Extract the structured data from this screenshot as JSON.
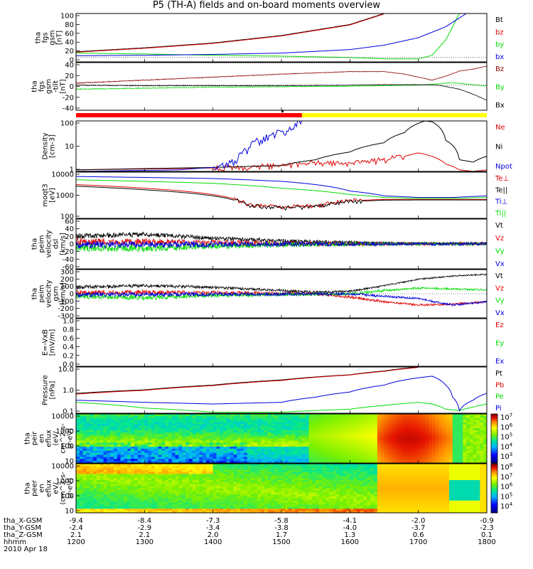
{
  "title": "P5 (TH-A) fields and on-board moments overview",
  "colors": {
    "black": "#000000",
    "red": "#dd0000",
    "green": "#00dd00",
    "blue": "#0000dd",
    "darkred": "#8b0000"
  },
  "chart_data": [
    {
      "type": "line",
      "ylabel": [
        "tha",
        "fgs",
        "gsm",
        "[nT]"
      ],
      "ylim": [
        -10,
        100
      ],
      "ytick_labels": [
        "100",
        "80",
        "60",
        "40",
        "20",
        "0"
      ],
      "series": [
        {
          "name": "Bt",
          "color": "#000000",
          "x": [
            1200,
            1300,
            1400,
            1500,
            1600,
            1650
          ],
          "y": [
            13,
            22,
            33,
            50,
            75,
            100
          ]
        },
        {
          "name": "bz",
          "color": "#dd0000",
          "x": [
            1200,
            1300,
            1400,
            1500,
            1600,
            1650
          ],
          "y": [
            12,
            21,
            32,
            49,
            74,
            99
          ]
        },
        {
          "name": "by",
          "color": "#00dd00",
          "x": [
            1200,
            1300,
            1400,
            1500,
            1600,
            1650,
            1700,
            1720,
            1740,
            1760
          ],
          "y": [
            10,
            8,
            5,
            3,
            0,
            -3,
            -3,
            5,
            40,
            100
          ]
        },
        {
          "name": "bx",
          "color": "#0000dd",
          "x": [
            1200,
            1300,
            1400,
            1500,
            1600,
            1650,
            1700,
            1740,
            1770
          ],
          "y": [
            4,
            5,
            7,
            10,
            18,
            28,
            45,
            70,
            100
          ]
        }
      ]
    },
    {
      "type": "line",
      "ylabel": [
        "tha",
        "fgs",
        "gsm",
        "-tilt",
        "[nT]"
      ],
      "ylim": [
        -50,
        45
      ],
      "ytick_labels": [
        "40",
        "20",
        "0",
        "-20",
        "-40"
      ],
      "series": [
        {
          "name": "Bz",
          "color": "#8b0000",
          "x": [
            1200,
            1300,
            1400,
            1500,
            1600,
            1650,
            1680,
            1700,
            1720,
            1740,
            1760,
            1780,
            1800
          ],
          "y": [
            4,
            10,
            16,
            22,
            27,
            27,
            22,
            16,
            10,
            18,
            28,
            32,
            38
          ]
        },
        {
          "name": "By",
          "color": "#00dd00",
          "x": [
            1200,
            1300,
            1400,
            1500,
            1600,
            1700,
            1750,
            1800
          ],
          "y": [
            -8,
            -6,
            -4,
            -3,
            -2,
            0,
            5,
            -2
          ]
        },
        {
          "name": "Bx",
          "color": "#000000",
          "x": [
            1200,
            1300,
            1400,
            1500,
            1600,
            1650,
            1700,
            1730,
            1760,
            1780,
            1800
          ],
          "y": [
            0,
            -1,
            -1,
            -1,
            0,
            1,
            1,
            0,
            -8,
            -18,
            -30
          ]
        }
      ]
    },
    {
      "type": "line",
      "ylabel": [
        "Density",
        "[cm-3]"
      ],
      "yscale": "log",
      "ylim": [
        0.5,
        200
      ],
      "ytick_labels": [
        "100",
        "10",
        "1"
      ],
      "series": [
        {
          "name": "Ne",
          "color": "#dd0000",
          "x": [
            1200,
            1350,
            1450,
            1500,
            1550,
            1600,
            1650,
            1680,
            1700,
            1720,
            1740,
            1760,
            1780,
            1800
          ],
          "y": [
            0.6,
            0.7,
            0.8,
            1.0,
            1.4,
            1.2,
            2.0,
            3.0,
            4.5,
            3.0,
            1.2,
            0.6,
            0.5,
            0.6
          ]
        },
        {
          "name": "Ni",
          "color": "#000000",
          "x": [
            1200,
            1300,
            1400,
            1500,
            1550,
            1600,
            1650,
            1680,
            1700,
            1710,
            1720,
            1730,
            1740,
            1760,
            1780,
            1800
          ],
          "y": [
            0.6,
            0.7,
            0.8,
            1.0,
            2.0,
            5.0,
            15,
            50,
            150,
            200,
            180,
            100,
            20,
            2,
            1.5,
            3
          ]
        },
        {
          "name": "Npot",
          "color": "#0000dd",
          "x": [
            1200,
            1350,
            1400,
            1430,
            1450,
            1480,
            1510,
            1530
          ],
          "y": [
            0.5,
            0.6,
            0.8,
            1.5,
            6,
            30,
            80,
            200
          ]
        }
      ]
    },
    {
      "type": "line",
      "ylabel": [
        "moqt3",
        "[eV]"
      ],
      "yscale": "log",
      "ylim": [
        20,
        15000
      ],
      "ytick_labels": [
        "10000",
        "1000",
        "100"
      ],
      "series": [
        {
          "name": "Te⊥",
          "color": "#dd0000",
          "x": [
            1200,
            1300,
            1400,
            1450,
            1500,
            1550,
            1600,
            1650,
            1700,
            1750,
            1800
          ],
          "y": [
            2500,
            1500,
            600,
            150,
            100,
            120,
            250,
            300,
            300,
            300,
            300
          ]
        },
        {
          "name": "Te||",
          "color": "#000000",
          "x": [
            1200,
            1300,
            1400,
            1450,
            1500,
            1550,
            1600,
            1650,
            1700,
            1750,
            1800
          ],
          "y": [
            2000,
            1200,
            500,
            130,
            90,
            110,
            220,
            270,
            280,
            280,
            280
          ]
        },
        {
          "name": "Ti⊥",
          "color": "#0000dd",
          "x": [
            1200,
            1300,
            1400,
            1500,
            1600,
            1650,
            1700,
            1750,
            1800
          ],
          "y": [
            8000,
            7000,
            6000,
            4000,
            1000,
            500,
            400,
            400,
            500
          ]
        },
        {
          "name": "Ti||",
          "color": "#00dd00",
          "x": [
            1200,
            1300,
            1400,
            1500,
            1600,
            1650,
            1700,
            1750,
            1800
          ],
          "y": [
            5000,
            4000,
            3000,
            1500,
            600,
            400,
            350,
            350,
            400
          ]
        }
      ]
    },
    {
      "type": "line",
      "ylabel": [
        "tha",
        "peim",
        "velocity",
        "dsl",
        "[km/s]"
      ],
      "ylim": [
        -65,
        65
      ],
      "ytick_labels": [
        "60",
        "40",
        "20",
        "0",
        "-20",
        "-40",
        "-60"
      ],
      "series": [
        {
          "name": "Vt",
          "color": "#000000",
          "x": [
            1200,
            1300,
            1400,
            1500,
            1600,
            1700,
            1800
          ],
          "y": [
            20,
            25,
            15,
            8,
            4,
            2,
            2
          ]
        },
        {
          "name": "Vz",
          "color": "#dd0000",
          "x": [
            1200,
            1300,
            1400,
            1500,
            1600,
            1700,
            1800
          ],
          "y": [
            5,
            6,
            3,
            1,
            0,
            0,
            0
          ]
        },
        {
          "name": "Vy",
          "color": "#00dd00",
          "x": [
            1200,
            1300,
            1400,
            1500,
            1600,
            1700,
            1800
          ],
          "y": [
            -10,
            -12,
            -6,
            -2,
            0,
            0,
            0
          ]
        },
        {
          "name": "Vx",
          "color": "#0000dd",
          "x": [
            1200,
            1300,
            1400,
            1500,
            1600,
            1700,
            1800
          ],
          "y": [
            -2,
            -2,
            -1,
            0,
            0,
            0,
            0
          ]
        }
      ]
    },
    {
      "type": "line",
      "ylabel": [
        "tha",
        "peim",
        "velocity",
        "gsm",
        "[km/s]"
      ],
      "ylim": [
        -300,
        300
      ],
      "ytick_labels": [
        "300",
        "200",
        "100",
        "0",
        "-100",
        "-200",
        "-300"
      ],
      "series": [
        {
          "name": "Vt",
          "color": "#000000",
          "x": [
            1200,
            1300,
            1400,
            1500,
            1550,
            1600,
            1650,
            1700,
            1750,
            1800
          ],
          "y": [
            80,
            100,
            80,
            40,
            20,
            30,
            100,
            180,
            220,
            240
          ]
        },
        {
          "name": "Vz",
          "color": "#dd0000",
          "x": [
            1200,
            1300,
            1400,
            1500,
            1550,
            1600,
            1650,
            1700,
            1750,
            1800
          ],
          "y": [
            10,
            20,
            10,
            5,
            0,
            -40,
            -100,
            -140,
            -130,
            -100
          ]
        },
        {
          "name": "Vy",
          "color": "#00dd00",
          "x": [
            1200,
            1300,
            1400,
            1500,
            1600,
            1650,
            1700,
            1750,
            1800
          ],
          "y": [
            -30,
            -50,
            -20,
            -10,
            0,
            40,
            70,
            60,
            50
          ]
        },
        {
          "name": "Vx",
          "color": "#0000dd",
          "x": [
            1200,
            1300,
            1400,
            1500,
            1600,
            1700,
            1750,
            1800
          ],
          "y": [
            -10,
            -10,
            -5,
            -5,
            0,
            -60,
            -140,
            -100
          ]
        }
      ]
    },
    {
      "type": "line",
      "ylabel": [
        "E=-VxB",
        "[mV/m]"
      ],
      "ylim": [
        0,
        1
      ],
      "ytick_labels": [
        "1.0",
        "0.8",
        "0.6",
        "0.4",
        "0.2",
        "0.0"
      ],
      "series": [
        {
          "name": "Ez",
          "color": "#dd0000",
          "x": [],
          "y": []
        },
        {
          "name": "Ey",
          "color": "#00dd00",
          "x": [],
          "y": []
        },
        {
          "name": "Ex",
          "color": "#0000dd",
          "x": [],
          "y": []
        }
      ]
    },
    {
      "type": "line",
      "ylabel": [
        "Pressure",
        "[nPa]"
      ],
      "yscale": "log",
      "ylim": [
        0.035,
        17
      ],
      "ytick_labels": [
        "10.0",
        "1.0",
        "0.1"
      ],
      "series": [
        {
          "name": "Pt",
          "color": "#000000",
          "x": [
            1200,
            1300,
            1400,
            1500,
            1600,
            1650,
            1700
          ],
          "y": [
            0.5,
            0.8,
            1.5,
            3,
            6,
            10,
            17
          ]
        },
        {
          "name": "Pb",
          "color": "#dd0000",
          "x": [
            1200,
            1300,
            1400,
            1500,
            1600,
            1650,
            1700
          ],
          "y": [
            0.45,
            0.75,
            1.4,
            2.8,
            5.8,
            9.5,
            16
          ]
        },
        {
          "name": "Pe",
          "color": "#00dd00",
          "x": [
            1200,
            1300,
            1400,
            1500,
            1600,
            1650,
            1700,
            1720,
            1740,
            1760,
            1780,
            1800
          ],
          "y": [
            0.15,
            0.07,
            0.04,
            0.04,
            0.06,
            0.1,
            0.15,
            0.12,
            0.06,
            0.05,
            0.08,
            0.12
          ]
        },
        {
          "name": "Pi",
          "color": "#0000dd",
          "x": [
            1200,
            1300,
            1400,
            1500,
            1550,
            1600,
            1650,
            1700,
            1720,
            1740,
            1750,
            1760,
            1780,
            1800
          ],
          "y": [
            0.2,
            0.15,
            0.12,
            0.15,
            0.3,
            0.6,
            1.5,
            4,
            5,
            1.5,
            0.3,
            0.05,
            0.2,
            0.5
          ]
        }
      ]
    },
    {
      "type": "heatmap",
      "ylabel": [
        "tha",
        "peir",
        "en",
        "eflux",
        "(eV/",
        "cm^2-s-",
        "sr-eV)"
      ],
      "ytick_labels": [
        "10000",
        "1000",
        "100",
        "10"
      ],
      "colorbar_labels": [
        "10^7",
        "10^6",
        "10^5",
        "10^4",
        "10^3"
      ]
    },
    {
      "type": "heatmap",
      "ylabel": [
        "tha",
        "peer",
        "en",
        "eflux",
        "eV/",
        "(cm^2-s-",
        "sr-eV)"
      ],
      "ytick_labels": [
        "10000",
        "1000",
        "100",
        "10"
      ],
      "colorbar_labels": [
        "10^8",
        "10^7",
        "10^6",
        "10^5",
        "10^4"
      ]
    }
  ],
  "bar_strip": {
    "colors": [
      "#ff0000",
      "#ffff00"
    ],
    "switch_x": 1530
  },
  "xaxis": {
    "xlim": [
      1200,
      1800
    ],
    "row_labels": [
      "tha_X-GSM",
      "tha_Y-GSM",
      "tha_Z-GSM",
      "hhmm",
      "2010 Apr 18"
    ],
    "ticks": [
      {
        "hhmm": "1200",
        "x": "-9.4",
        "y": "-2.4",
        "z": "2.1"
      },
      {
        "hhmm": "1300",
        "x": "-8.4",
        "y": "-2.9",
        "z": "2.1"
      },
      {
        "hhmm": "1400",
        "x": "-7.3",
        "y": "-3.4",
        "z": "2.0"
      },
      {
        "hhmm": "1500",
        "x": "-5.8",
        "y": "-3.8",
        "z": "1.7"
      },
      {
        "hhmm": "1600",
        "x": "-4.1",
        "y": "-4.0",
        "z": "1.3"
      },
      {
        "hhmm": "1700",
        "x": "-2.0",
        "y": "-3.7",
        "z": "0.6"
      },
      {
        "hhmm": "1800",
        "x": "-0.9",
        "y": "-2.3",
        "z": "0.1"
      }
    ]
  }
}
